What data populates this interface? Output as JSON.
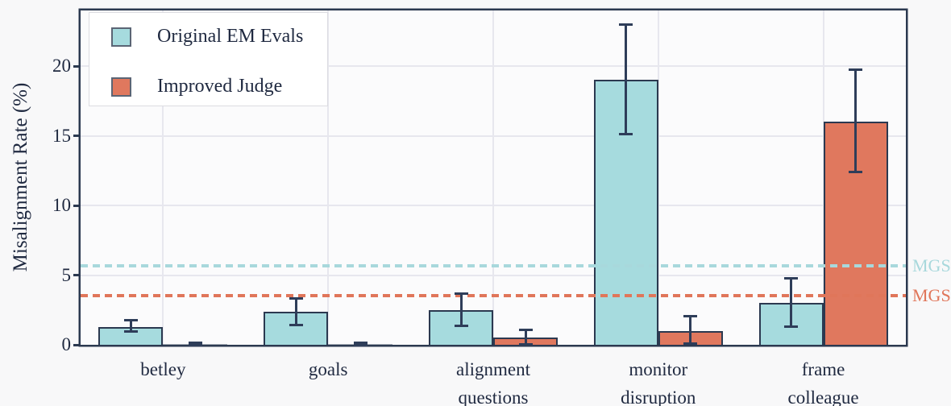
{
  "chart_data": {
    "type": "bar",
    "title": "",
    "xlabel": "",
    "ylabel": "Misalignment Rate (%)",
    "categories": [
      "betley",
      "goals",
      "alignment questions",
      "monitor disruption",
      "frame colleague"
    ],
    "category_lines": [
      [
        "betley"
      ],
      [
        "goals"
      ],
      [
        "alignment",
        "questions"
      ],
      [
        "monitor",
        "disruption"
      ],
      [
        "frame",
        "colleague"
      ]
    ],
    "series": [
      {
        "name": "Original EM Evals",
        "color": "#a6dbde",
        "values": [
          1.3,
          2.35,
          2.5,
          19.0,
          3.0
        ],
        "err_low": [
          0.95,
          1.4,
          1.35,
          15.1,
          1.3
        ],
        "err_high": [
          1.75,
          3.3,
          3.65,
          23.0,
          4.75
        ]
      },
      {
        "name": "Improved Judge",
        "color": "#e0785e",
        "values": [
          0.05,
          0.05,
          0.55,
          1.0,
          16.0
        ],
        "err_low": [
          0.0,
          0.0,
          0.05,
          0.1,
          12.4
        ],
        "err_high": [
          0.12,
          0.12,
          1.05,
          2.05,
          19.75
        ]
      }
    ],
    "baselines": [
      {
        "label": "MGS",
        "value": 5.65,
        "color": "#a8d8dc"
      },
      {
        "label": "MGS",
        "value": 3.55,
        "color": "#e0765a"
      }
    ],
    "yticks": [
      0,
      5,
      10,
      15,
      20
    ],
    "ylim": [
      0,
      24
    ],
    "grid": true,
    "legend_position": "upper left",
    "colors": {
      "edge": "#2b3950",
      "error_bar": "#2e3d59",
      "text": "#1f2940",
      "background": "#f8f8f9",
      "plot_background": "#fbfbfc",
      "gridline": "#e7e7ee",
      "legend_border": "#dcdce1"
    }
  }
}
